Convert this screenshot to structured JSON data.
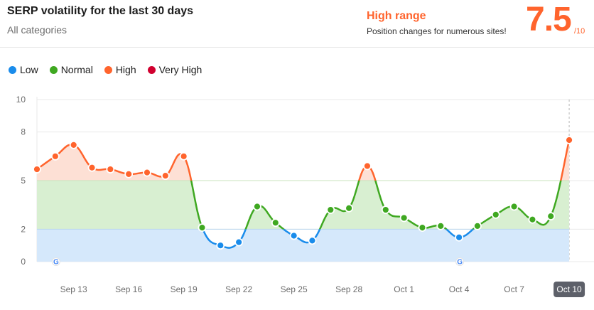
{
  "header": {
    "title": "SERP volatility for the last 30 days",
    "subtitle": "All categories",
    "range_title": "High range",
    "range_desc": "Position changes for numerous sites!",
    "score": "7.5",
    "score_denominator": "/10"
  },
  "legend": [
    {
      "label": "Low",
      "color": "#1a8ceb"
    },
    {
      "label": "Normal",
      "color": "#3fa821"
    },
    {
      "label": "High",
      "color": "#ff642d"
    },
    {
      "label": "Very High",
      "color": "#d1002f"
    }
  ],
  "chart_data": {
    "type": "line",
    "title": "SERP volatility for the last 30 days",
    "xlabel": "",
    "ylabel": "",
    "ylim": [
      0,
      10
    ],
    "yticks": [
      0,
      2,
      5,
      8,
      10
    ],
    "x": [
      "Sep 11",
      "Sep 12",
      "Sep 13",
      "Sep 14",
      "Sep 15",
      "Sep 16",
      "Sep 17",
      "Sep 18",
      "Sep 19",
      "Sep 20",
      "Sep 21",
      "Sep 22",
      "Sep 23",
      "Sep 24",
      "Sep 25",
      "Sep 26",
      "Sep 27",
      "Sep 28",
      "Sep 29",
      "Sep 30",
      "Oct 1",
      "Oct 2",
      "Oct 3",
      "Oct 4",
      "Oct 5",
      "Oct 6",
      "Oct 7",
      "Oct 8",
      "Oct 9",
      "Oct 10"
    ],
    "values": [
      5.7,
      6.5,
      7.2,
      5.8,
      5.7,
      5.4,
      5.5,
      5.3,
      6.5,
      2.1,
      1.0,
      1.2,
      3.4,
      2.4,
      1.6,
      1.3,
      3.2,
      3.3,
      5.9,
      3.2,
      2.7,
      2.1,
      2.2,
      1.5,
      2.2,
      2.9,
      3.4,
      2.6,
      2.8,
      7.5
    ],
    "xtick_labels": [
      "Sep 13",
      "Sep 16",
      "Sep 19",
      "Sep 22",
      "Sep 25",
      "Sep 28",
      "Oct 1",
      "Oct 4",
      "Oct 7",
      "Oct 10"
    ],
    "highlighted_x": "Oct 10",
    "google_update_markers": [
      "Sep 12",
      "Oct 4"
    ],
    "bands": [
      {
        "name": "Low",
        "from": 0,
        "to": 2,
        "color": "#1a8ceb"
      },
      {
        "name": "Normal",
        "from": 2,
        "to": 5,
        "color": "#3fa821"
      },
      {
        "name": "High",
        "from": 5,
        "to": 8,
        "color": "#ff642d"
      },
      {
        "name": "Very High",
        "from": 8,
        "to": 10,
        "color": "#d1002f"
      }
    ],
    "grid": true,
    "legend_position": "top-left"
  }
}
